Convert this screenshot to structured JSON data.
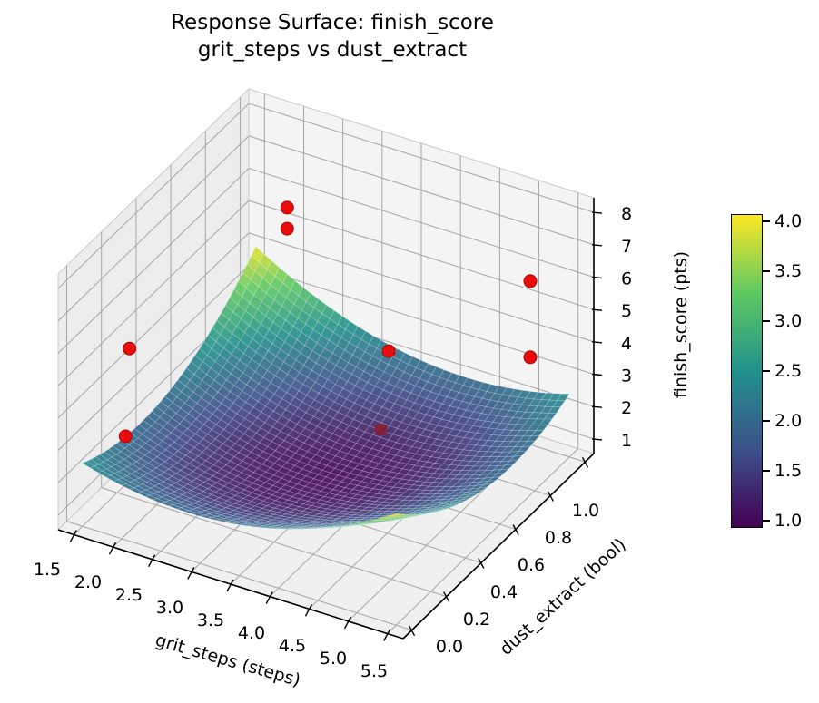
{
  "figure": {
    "background": "#ffffff"
  },
  "chart_data": {
    "type": "surface",
    "overlay": "scatter",
    "title": "Response Surface: finish_score",
    "subtitle": "grit_steps vs dust_extract",
    "xlabel": "grit_steps (steps)",
    "ylabel": "dust_extract (bool)",
    "zlabel": "finish_score (pts)",
    "xlim": [
      1.3,
      5.7
    ],
    "ylim": [
      -0.05,
      1.05
    ],
    "zlim": [
      0.55,
      8.45
    ],
    "xticks": [
      1.5,
      2.0,
      2.5,
      3.0,
      3.5,
      4.0,
      4.5,
      5.0,
      5.5
    ],
    "yticks": [
      0.0,
      0.2,
      0.4,
      0.6,
      0.8,
      1.0
    ],
    "zticks": [
      1,
      2,
      3,
      4,
      5,
      6,
      7,
      8
    ],
    "view": {
      "elev_deg": 30,
      "azim_deg": -60,
      "projection": "orthographic-approx"
    },
    "surface": {
      "x_range": [
        1.5,
        5.5
      ],
      "y_range": [
        0.0,
        1.0
      ],
      "equation": "z = 1.0 + 1.125*((x-3.5)/2)^2 + 1.125*((y-0.5)/0.5)^2 - 0.75*((x-3.5)/2)*((y-0.5)/0.5)",
      "coeffs": {
        "c0": 1.0,
        "cu2": 1.125,
        "cv2": 1.125,
        "cuv": -0.75,
        "u_center": 3.5,
        "u_scale": 2.0,
        "v_center": 0.5,
        "v_scale": 0.5
      },
      "z_min": 1.0,
      "z_max": 4.0,
      "mesh_divisions": 40,
      "colormap": "viridis",
      "fill_opacity": 0.9,
      "mesh_line_color": "rgba(255,255,255,0.3)"
    },
    "scatter": {
      "color": "#ea0c0c",
      "edge_color": "#a50808",
      "behind_color": "#8c1a2e",
      "marker_radius_px": 7,
      "points": [
        {
          "x": 1.9,
          "y": 1.0,
          "z": 5.5
        },
        {
          "x": 1.9,
          "y": 1.0,
          "z": 4.85
        },
        {
          "x": 5.0,
          "y": 1.0,
          "z": 5.6
        },
        {
          "x": 2.1,
          "y": 0.0,
          "z": 6.5
        },
        {
          "x": 4.3,
          "y": 0.5,
          "z": 5.5
        },
        {
          "x": 5.0,
          "y": 1.0,
          "z": 3.25
        },
        {
          "x": 2.05,
          "y": 0.0,
          "z": 3.75
        },
        {
          "x": 4.2,
          "y": 0.5,
          "z": 3.0,
          "behind_surface": true
        }
      ]
    },
    "colorbar": {
      "vmin": 0.93,
      "vmax": 4.07,
      "ticks": [
        1.0,
        1.5,
        2.0,
        2.5,
        3.0,
        3.5,
        4.0
      ],
      "colormap": "viridis"
    },
    "viridis_stops": [
      [
        0.0,
        "#440154"
      ],
      [
        0.25,
        "#3b528b"
      ],
      [
        0.5,
        "#21918c"
      ],
      [
        0.75,
        "#5ec962"
      ],
      [
        1.0,
        "#fde725"
      ]
    ],
    "grid_color": "#ababab",
    "pane_edge_color": "#c9c9c9",
    "pane_colors": {
      "left": "#ededed",
      "right": "#f4f4f4",
      "floor": "#f0f0f0"
    },
    "spine_color": "#000000",
    "tick_label_color": "#000000"
  }
}
